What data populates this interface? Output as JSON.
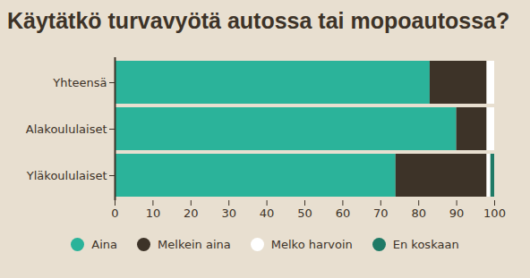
{
  "chart_data": {
    "type": "bar",
    "title": "Käytätkö turvavyötä autossa tai mopoautossa?",
    "orientation": "horizontal",
    "stacked": true,
    "legend": "bottom",
    "grid": false,
    "categories": [
      "Yhteensä",
      "Alakoululaiset",
      "Yläkoululaiset"
    ],
    "series": [
      {
        "name": "Aina",
        "color": "#2bb39a",
        "values": [
          83,
          90,
          74
        ]
      },
      {
        "name": "Melkein aina",
        "color": "#3d3328",
        "values": [
          15,
          8,
          24
        ]
      },
      {
        "name": "Melko harvoin",
        "color": "#ffffff",
        "values": [
          2,
          2,
          1
        ]
      },
      {
        "name": "En koskaan",
        "color": "#1f7a66",
        "values": [
          0,
          0,
          1
        ]
      }
    ],
    "xlim": [
      0,
      100
    ],
    "xticks": [
      0,
      10,
      20,
      30,
      40,
      50,
      60,
      70,
      80,
      90,
      100
    ]
  }
}
